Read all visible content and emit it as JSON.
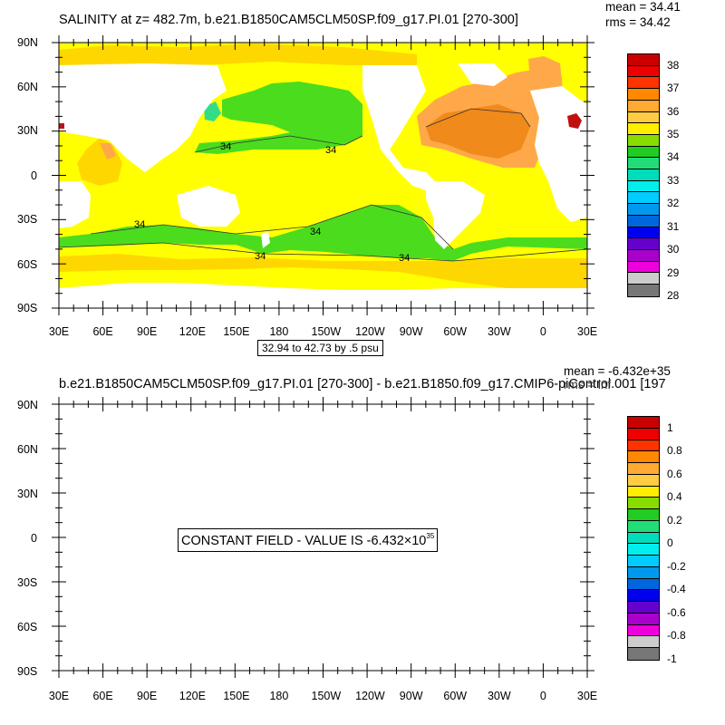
{
  "panel_top": {
    "title": "SALINITY at z= 482.7m, b.e21.B1850CAM5CLM50SP.f09_g17.PI.01 [270-300]",
    "stats": {
      "mean": "mean = 34.41",
      "rms": "rms = 34.42"
    },
    "contour_info": "32.94 to 42.73 by .5 psu",
    "contour_labels": [
      "34",
      "34",
      "34",
      "34",
      "34",
      "34"
    ],
    "colorbar": {
      "labels": [
        "38",
        "37",
        "36",
        "35",
        "34",
        "33",
        "32",
        "31",
        "30",
        "29",
        "28"
      ],
      "colors": [
        "#c80000",
        "#ee0000",
        "#ff3300",
        "#ff8800",
        "#ffaa33",
        "#ffcc44",
        "#ffee00",
        "#88dd00",
        "#22cc22",
        "#22dd77",
        "#00ddbb",
        "#00eeee",
        "#00ccff",
        "#0099ee",
        "#0066dd",
        "#0000ee",
        "#6600cc",
        "#aa00cc",
        "#ee00dd",
        "#cccccc",
        "#777777"
      ]
    },
    "fields": {
      "yellow": "#ffff00",
      "gold": "#ffd700",
      "orange_light": "#ffa84a",
      "orange": "#f08a1a",
      "green": "#4bdc1e",
      "green_mint": "#33dd88",
      "red": "#c01010"
    }
  },
  "panel_bottom": {
    "title": "b.e21.B1850CAM5CLM50SP.f09_g17.PI.01 [270-300] - b.e21.B1850.f09_g17.CMIP6-piControl.001 [197",
    "stats": {
      "mean": "mean = -6.432e+35",
      "rms": "rms = inf"
    },
    "constant_text": "CONSTANT FIELD - VALUE IS -6.432",
    "constant_times": "×10",
    "constant_exp": "35",
    "colorbar": {
      "labels": [
        "1",
        "0.8",
        "0.6",
        "0.4",
        "0.2",
        "0",
        "-0.2",
        "-0.4",
        "-0.6",
        "-0.8",
        "-1"
      ],
      "colors": [
        "#c80000",
        "#ee0000",
        "#ff3300",
        "#ff8800",
        "#ffaa33",
        "#ffcc44",
        "#ffee00",
        "#88dd00",
        "#22cc22",
        "#22dd77",
        "#00ddbb",
        "#00eeee",
        "#00ccff",
        "#0099ee",
        "#0066dd",
        "#0000ee",
        "#6600cc",
        "#aa00cc",
        "#ee00dd",
        "#cccccc",
        "#777777"
      ]
    }
  },
  "axes": {
    "lat_labels": [
      "90N",
      "60N",
      "30N",
      "0",
      "30S",
      "60S",
      "90S"
    ],
    "lon_labels": [
      "30E",
      "60E",
      "90E",
      "120E",
      "150E",
      "180",
      "150W",
      "120W",
      "90W",
      "60W",
      "30W",
      "0",
      "30E"
    ]
  }
}
